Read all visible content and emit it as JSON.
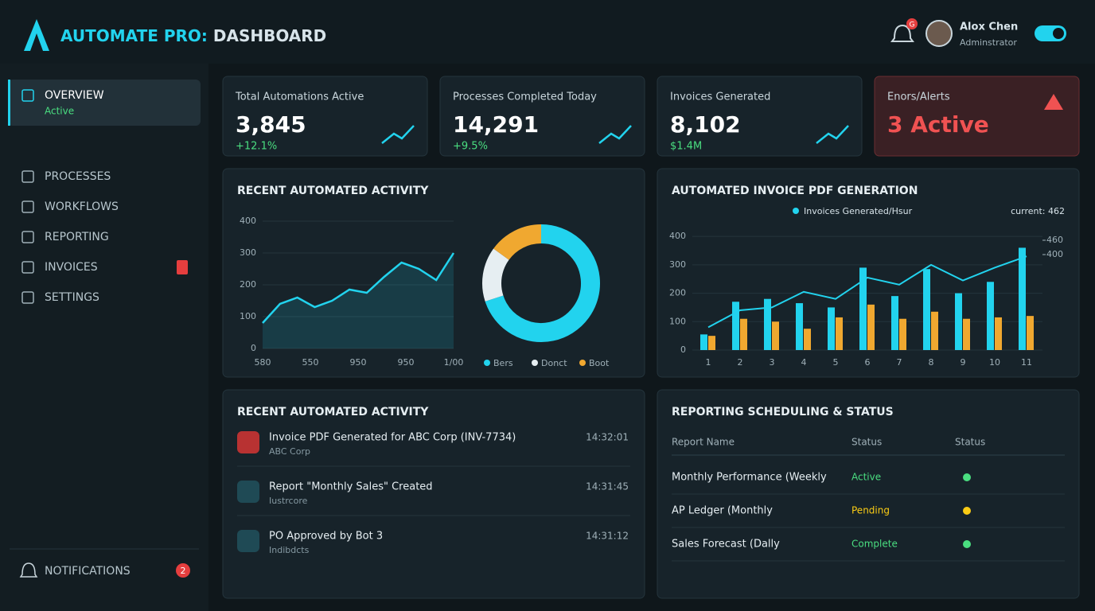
{
  "header": {
    "title_accent": "AUTOMATE PRO:",
    "title_rest": " DASHBOARD",
    "notification_badge": "G",
    "user_name": "Alox Chen",
    "user_role": "Adminstrator"
  },
  "sidebar": {
    "items": [
      {
        "label": "OVERVIEW",
        "sub": "Active"
      },
      {
        "label": "PROCESSES"
      },
      {
        "label": "WORKFLOWS"
      },
      {
        "label": "REPORTING"
      },
      {
        "label": "INVOICES"
      },
      {
        "label": "SETTINGS"
      }
    ],
    "notifications": {
      "label": "NOTIFICATIONS",
      "badge": "2"
    }
  },
  "kpis": [
    {
      "label": "Total Automations Active",
      "value": "3,845",
      "change": "+12.1%"
    },
    {
      "label": "Processes Completed Today",
      "value": "14,291",
      "change": "+9.5%"
    },
    {
      "label": "Invoices Generated",
      "value": "8,102",
      "change": "$1.4M"
    },
    {
      "label": "Enors/Alerts",
      "value": "3 Active"
    }
  ],
  "activity_chart": {
    "type": "line",
    "title": "RECENT AUTOMATED ACTIVITY",
    "x_labels": [
      "580",
      "550",
      "950",
      "950",
      "1/00"
    ],
    "values": [
      80,
      140,
      160,
      130,
      150,
      185,
      175,
      225,
      270,
      250,
      215,
      300
    ],
    "color": "#22d3ee",
    "ylim": [
      0,
      400
    ],
    "yticks": [
      0,
      100,
      200,
      300,
      400
    ]
  },
  "donut_chart": {
    "type": "pie",
    "categories": [
      "Bers",
      "Donct",
      "Boot"
    ],
    "values": [
      70,
      15,
      15
    ],
    "colors": [
      "#22d3ee",
      "#e6eef2",
      "#f0a830"
    ]
  },
  "invoice_chart": {
    "type": "bar",
    "title": "AUTOMATED INVOICE PDF GENERATION",
    "current_label": "current: 462",
    "categories": [
      "1",
      "2",
      "3",
      "4",
      "5",
      "6",
      "7",
      "8",
      "9",
      "10",
      "11"
    ],
    "series": [
      {
        "name": "Invoices Generated/Hsur",
        "color": "#22d3ee",
        "values": [
          55,
          170,
          180,
          165,
          150,
          290,
          190,
          285,
          200,
          240,
          360
        ]
      },
      {
        "color": "#f0a830",
        "values": [
          50,
          110,
          100,
          75,
          115,
          160,
          110,
          135,
          110,
          115,
          120
        ]
      },
      {
        "color": "#22d3ee",
        "line": true,
        "values": [
          80,
          140,
          150,
          205,
          180,
          255,
          230,
          300,
          245,
          290,
          330
        ]
      }
    ],
    "ylim": [
      0,
      420
    ],
    "yticks": [
      0,
      100,
      200,
      300,
      400
    ],
    "y2lim": [
      0,
      500
    ],
    "y2ticks": [
      400,
      460
    ]
  },
  "activity_list": {
    "title": "RECENT AUTOMATED ACTIVITY",
    "items": [
      {
        "title": "Invoice PDF Generated for ABC Corp (INV-7734)",
        "sub": "ABC Corp",
        "time": "14:32:01"
      },
      {
        "title": "Report \"Monthly Sales\" Created",
        "sub": "Iustrcore",
        "time": "14:31:45"
      },
      {
        "title": "PO Approved by Bot 3",
        "sub": "Indibdcts",
        "time": "14:31:12"
      }
    ]
  },
  "reporting": {
    "title": "REPORTING SCHEDULING & STATUS",
    "headers": [
      "Report Name",
      "Status",
      "Status"
    ],
    "rows": [
      {
        "name": "Monthly Performance (Weekly",
        "status": "Active",
        "color": "#4ade80"
      },
      {
        "name": "AP Ledger (Monthly",
        "status": "Pending",
        "color": "#facc15"
      },
      {
        "name": "Sales Forecast (Dally",
        "status": "Complete",
        "color": "#4ade80"
      }
    ]
  }
}
